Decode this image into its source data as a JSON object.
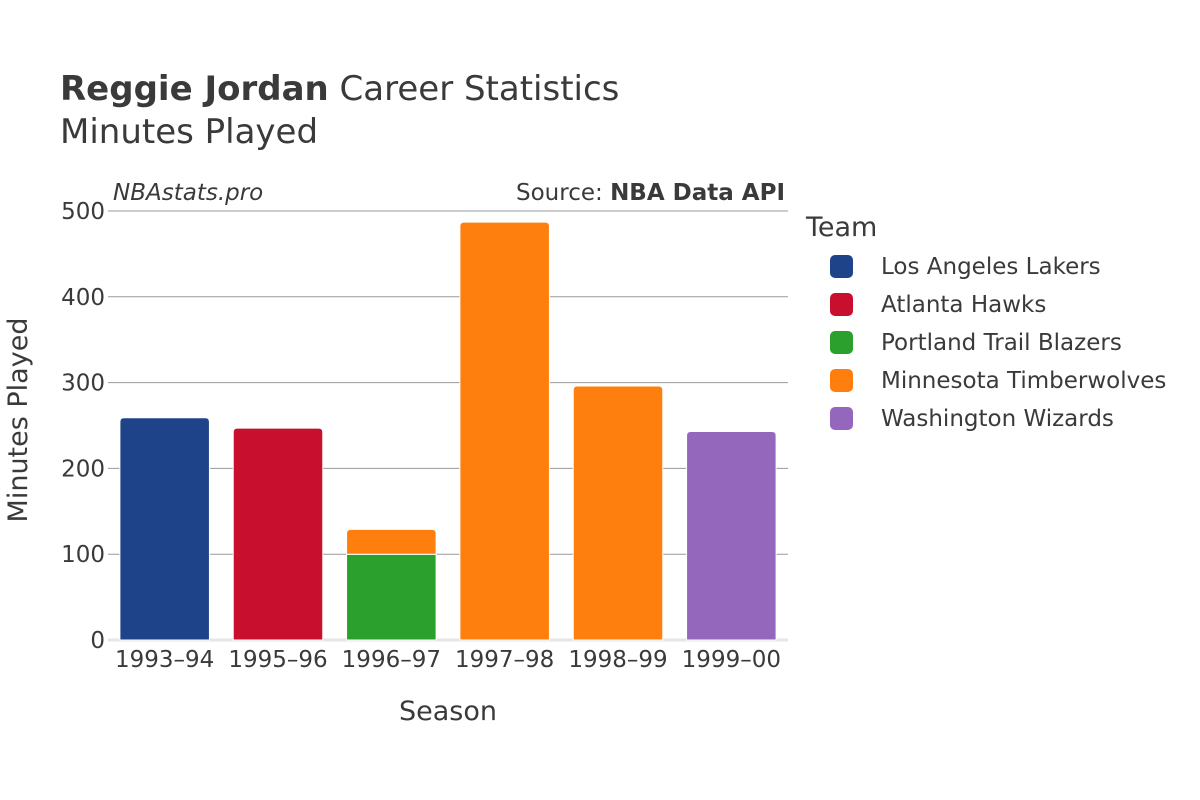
{
  "header": {
    "player_name": "Reggie Jordan",
    "title_suffix": "Career Statistics",
    "subtitle": "Minutes Played"
  },
  "meta": {
    "site": "NBAstats.pro",
    "source_prefix": "Source: ",
    "source_name": "NBA Data API"
  },
  "legend": {
    "title": "Team",
    "items": [
      {
        "label": "Los Angeles Lakers",
        "color": "#1f4388"
      },
      {
        "label": "Atlanta Hawks",
        "color": "#c8102e"
      },
      {
        "label": "Portland Trail Blazers",
        "color": "#2ca02c"
      },
      {
        "label": "Minnesota Timberwolves",
        "color": "#ff7f0e"
      },
      {
        "label": "Washington Wizards",
        "color": "#9467bd"
      }
    ]
  },
  "chart_data": {
    "type": "bar",
    "stacked": true,
    "categories": [
      "1993–94",
      "1995–96",
      "1996–97",
      "1997–98",
      "1998–99",
      "1999–00"
    ],
    "series": [
      {
        "name": "Los Angeles Lakers",
        "color": "#1f4388",
        "values": [
          259,
          0,
          0,
          0,
          0,
          0
        ]
      },
      {
        "name": "Atlanta Hawks",
        "color": "#c8102e",
        "values": [
          0,
          247,
          0,
          0,
          0,
          0
        ]
      },
      {
        "name": "Portland Trail Blazers",
        "color": "#2ca02c",
        "values": [
          0,
          0,
          100,
          0,
          0,
          0
        ]
      },
      {
        "name": "Minnesota Timberwolves",
        "color": "#ff7f0e",
        "values": [
          0,
          0,
          29,
          487,
          296,
          0
        ]
      },
      {
        "name": "Washington Wizards",
        "color": "#9467bd",
        "values": [
          0,
          0,
          0,
          0,
          0,
          243
        ]
      }
    ],
    "xlabel": "Season",
    "ylabel": "Minutes Played",
    "ylim": [
      0,
      500
    ],
    "yticks": [
      0,
      100,
      200,
      300,
      400,
      500
    ],
    "grid": true,
    "legend_position": "right"
  }
}
